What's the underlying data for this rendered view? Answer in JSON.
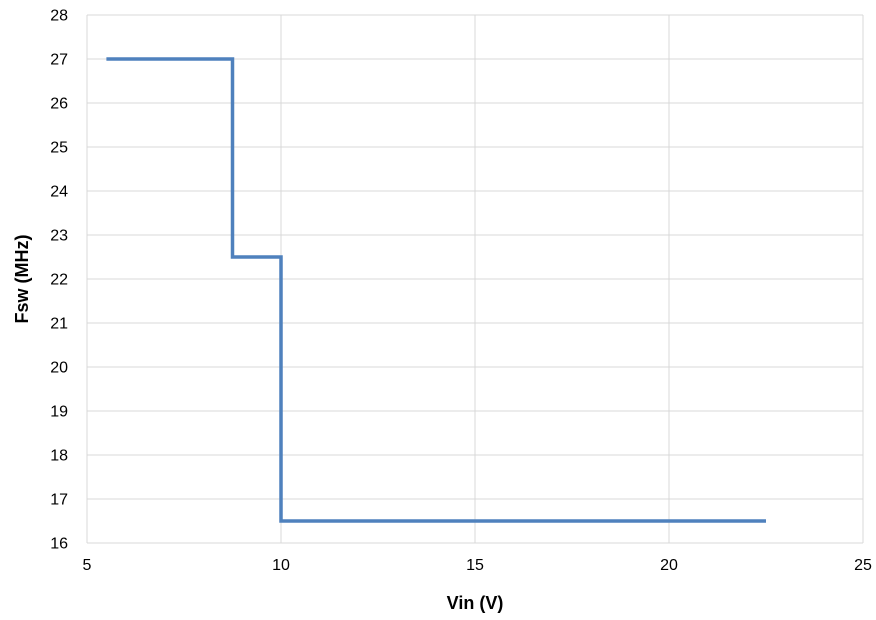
{
  "chart_data": {
    "type": "line",
    "title": "",
    "xlabel": "Vin (V)",
    "ylabel": "Fsw (MHz)",
    "xlim": [
      5,
      25
    ],
    "ylim": [
      16,
      28
    ],
    "x_ticks": [
      5,
      10,
      15,
      20,
      25
    ],
    "y_ticks": [
      16,
      17,
      18,
      19,
      20,
      21,
      22,
      23,
      24,
      25,
      26,
      27,
      28
    ],
    "grid": true,
    "legend": "none",
    "series": [
      {
        "color": "#4F81BD",
        "points": [
          [
            5.5,
            27
          ],
          [
            8.75,
            27
          ],
          [
            8.75,
            22.5
          ],
          [
            10,
            22.5
          ],
          [
            10,
            16.5
          ],
          [
            22.5,
            16.5
          ]
        ]
      }
    ]
  }
}
